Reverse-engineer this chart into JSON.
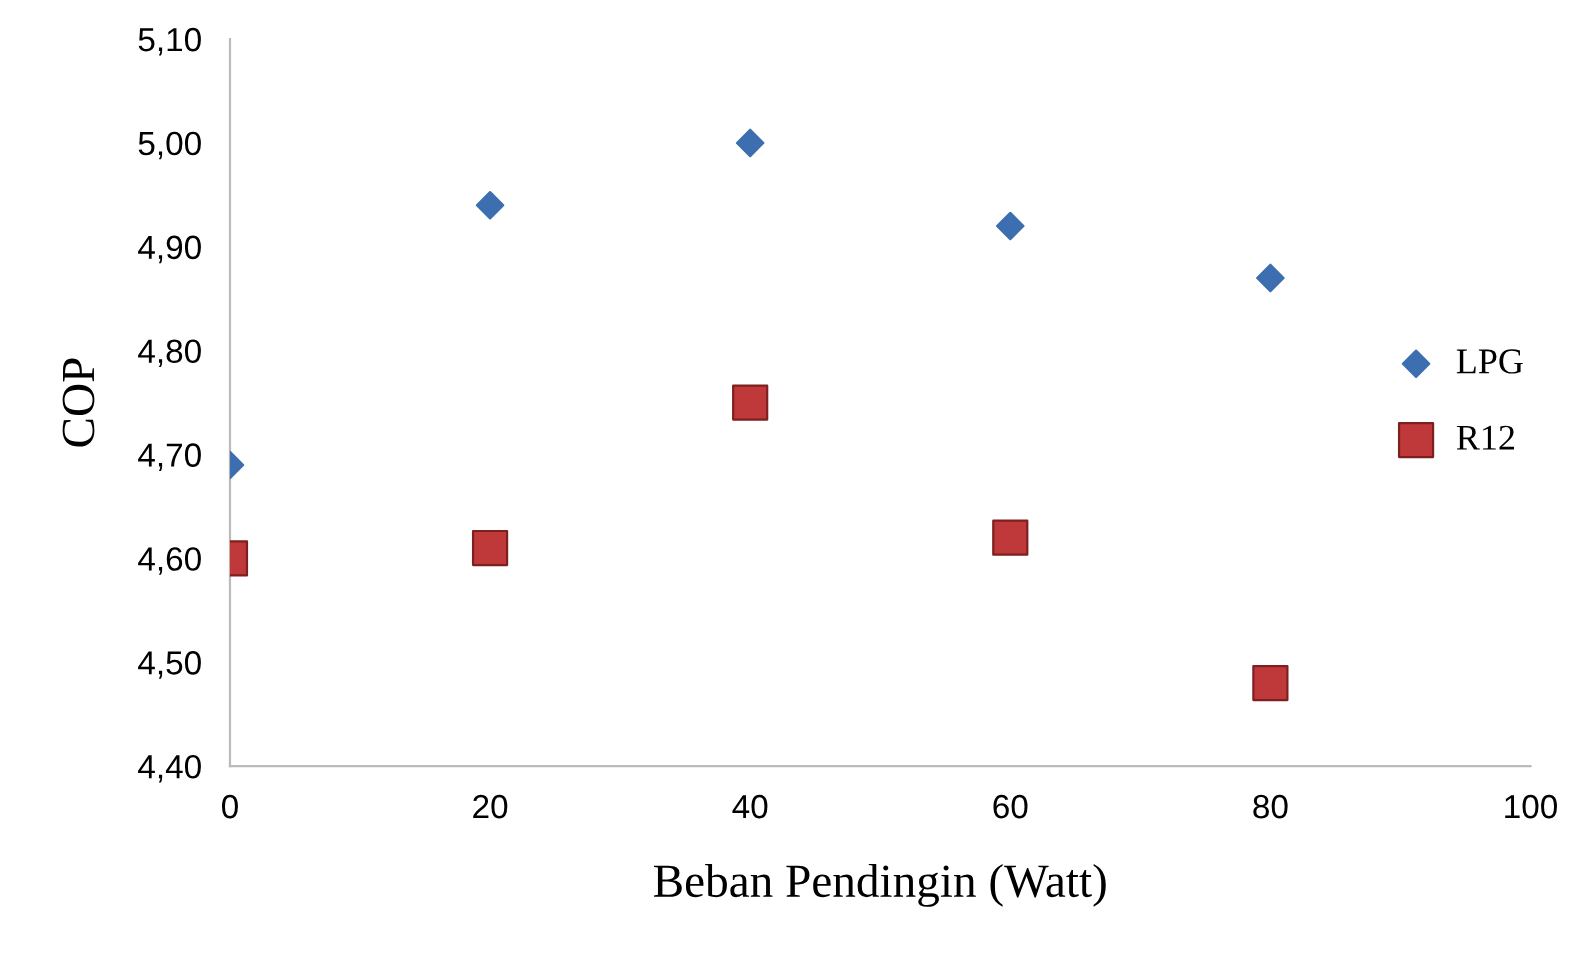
{
  "chart_data": {
    "type": "scatter",
    "xlabel": "Beban Pendingin (Watt)",
    "ylabel": "COP",
    "x": [
      0,
      20,
      40,
      60,
      80
    ],
    "series": [
      {
        "name": "LPG",
        "color": "#3c6eb0",
        "marker": "diamond",
        "values": [
          4.69,
          4.94,
          5.0,
          4.92,
          4.87
        ]
      },
      {
        "name": "R12",
        "color": "#c0393a",
        "marker": "square",
        "values": [
          4.6,
          4.61,
          4.75,
          4.62,
          4.48
        ]
      }
    ],
    "xlim": [
      0,
      100
    ],
    "xticks": [
      0,
      20,
      40,
      60,
      80,
      100
    ],
    "ylim": [
      4.4,
      5.1
    ],
    "yticks": [
      {
        "value": 4.4,
        "label": "4,40"
      },
      {
        "value": 4.5,
        "label": "4,50"
      },
      {
        "value": 4.6,
        "label": "4,60"
      },
      {
        "value": 4.7,
        "label": "4,70"
      },
      {
        "value": 4.8,
        "label": "4,80"
      },
      {
        "value": 4.9,
        "label": "4,90"
      },
      {
        "value": 5.0,
        "label": "5,00"
      },
      {
        "value": 5.1,
        "label": "5,10"
      }
    ],
    "grid": false,
    "legend": "right"
  }
}
